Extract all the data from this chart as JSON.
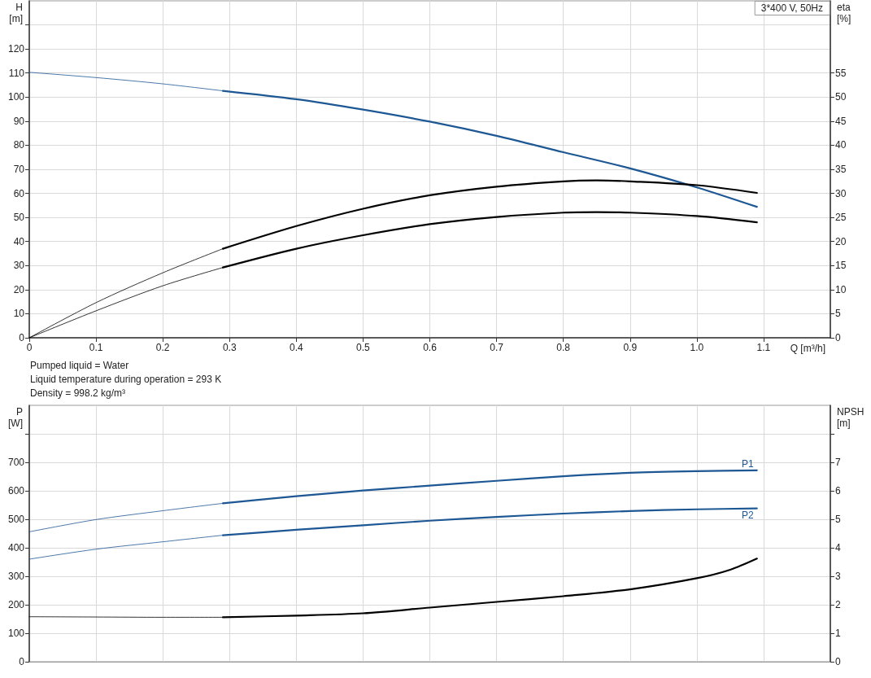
{
  "chart_data": [
    {
      "type": "line",
      "title": "3*400 V, 50Hz",
      "xlabel": "Q [m³/h]",
      "ylabel": "H\n[m]",
      "y2label": "eta\n[%]",
      "xlim": [
        0,
        1.2
      ],
      "xticks": [
        0,
        0.1,
        0.2,
        0.3,
        0.4,
        0.5,
        0.6,
        0.7,
        0.8,
        0.9,
        {
          "value": 1,
          "label": "1.0"
        },
        1.1
      ],
      "ylim": [
        0,
        140
      ],
      "yticks": [
        0,
        10,
        20,
        30,
        40,
        50,
        60,
        70,
        80,
        90,
        100,
        110,
        120,
        {
          "value": 130,
          "label": null
        }
      ],
      "y2lim": [
        0,
        70
      ],
      "y2ticks": [
        0,
        5,
        10,
        15,
        20,
        25,
        30,
        35,
        40,
        45,
        50,
        55
      ],
      "grid": true,
      "marker": "none",
      "series": [
        {
          "color": "#1d5794",
          "x": [
            0,
            0.1,
            0.2,
            0.29
          ],
          "values": [
            110.3,
            108.1,
            105.5,
            102.6
          ]
        },
        {
          "color": "#1d5794",
          "x": [
            0.29,
            0.4,
            0.5,
            0.6,
            0.7,
            0.8,
            0.9,
            1.0,
            1.09
          ],
          "values": [
            102.6,
            99.1,
            94.8,
            89.8,
            83.9,
            77.1,
            70.4,
            62.5,
            54.4
          ]
        },
        {
          "color": "#000000",
          "axis": "y2",
          "x": [
            0,
            0.1,
            0.2,
            0.29
          ],
          "values": [
            0,
            7.3,
            13.5,
            18.5
          ]
        },
        {
          "color": "#000000",
          "axis": "y2",
          "x": [
            0.29,
            0.4,
            0.5,
            0.6,
            0.7,
            0.8,
            0.85,
            0.9,
            1.0,
            1.09
          ],
          "values": [
            18.5,
            23.2,
            26.8,
            29.6,
            31.4,
            32.5,
            32.7,
            32.5,
            31.7,
            30.1
          ]
        },
        {
          "color": "#000000",
          "axis": "y2",
          "x": [
            0,
            0.1,
            0.2,
            0.29
          ],
          "values": [
            0,
            5.6,
            10.8,
            14.6
          ]
        },
        {
          "color": "#000000",
          "axis": "y2",
          "x": [
            0.29,
            0.4,
            0.5,
            0.6,
            0.7,
            0.8,
            0.85,
            0.9,
            1.0,
            1.09
          ],
          "values": [
            14.6,
            18.5,
            21.3,
            23.6,
            25.1,
            26.0,
            26.1,
            26.0,
            25.3,
            24.0
          ]
        }
      ],
      "annotations": [
        "Pumped liquid = Water",
        "Liquid temperature during operation = 293 K",
        "Density = 998.2 kg/m³"
      ]
    },
    {
      "type": "line",
      "ylabel": "P\n[W]",
      "y2label": "NPSH\n[m]",
      "tick_labels": "y",
      "xlim": [
        0,
        1.2
      ],
      "xticks": [
        0,
        0.1,
        0.2,
        0.3,
        0.4,
        0.5,
        0.6,
        0.7,
        0.8,
        0.9,
        1,
        1.1
      ],
      "ylim": [
        0,
        900
      ],
      "yticks": [
        0,
        100,
        200,
        300,
        400,
        500,
        600,
        700,
        {
          "value": 800,
          "label": null
        }
      ],
      "y2lim": [
        0,
        9
      ],
      "y2ticks": [
        0,
        1,
        2,
        3,
        4,
        5,
        6,
        7,
        {
          "value": 8,
          "label": null
        }
      ],
      "grid": true,
      "marker": "none",
      "series": [
        {
          "color": "#1d5794",
          "x": [
            0,
            0.1,
            0.2,
            0.29
          ],
          "values": [
            456,
            499,
            530,
            556
          ]
        },
        {
          "name": "P1",
          "color": "#1d5794",
          "x": [
            0.29,
            0.4,
            0.5,
            0.6,
            0.7,
            0.8,
            0.9,
            1.0,
            1.09
          ],
          "values": [
            556,
            581,
            601,
            618,
            635,
            651,
            663,
            669,
            672
          ]
        },
        {
          "color": "#1d5794",
          "x": [
            0,
            0.1,
            0.2,
            0.29
          ],
          "values": [
            360,
            395,
            421,
            444
          ]
        },
        {
          "name": "P2",
          "color": "#1d5794",
          "x": [
            0.29,
            0.4,
            0.5,
            0.6,
            0.7,
            0.8,
            0.9,
            1.0,
            1.09
          ],
          "values": [
            444,
            463,
            479,
            495,
            508,
            520,
            529,
            535,
            538
          ]
        },
        {
          "color": "#000000",
          "axis": "y2",
          "x": [
            0,
            0.1,
            0.2,
            0.29
          ],
          "values": [
            1.58,
            1.57,
            1.56,
            1.56
          ]
        },
        {
          "color": "#000000",
          "axis": "y2",
          "x": [
            0.29,
            0.4,
            0.5,
            0.6,
            0.7,
            0.8,
            0.9,
            1.0,
            1.05,
            1.09
          ],
          "values": [
            1.56,
            1.62,
            1.7,
            1.9,
            2.1,
            2.3,
            2.54,
            2.93,
            3.23,
            3.62
          ]
        }
      ]
    }
  ]
}
